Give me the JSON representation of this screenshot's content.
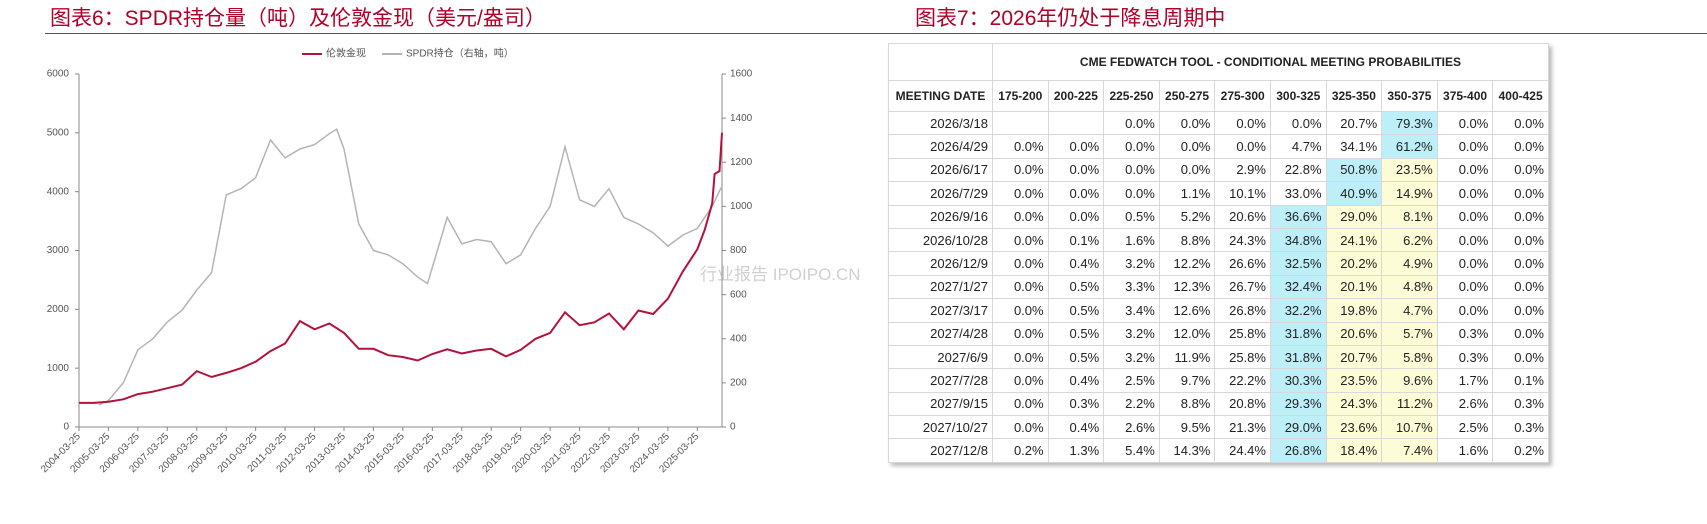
{
  "left_title": "图表6：SPDR持仓量（吨）及伦敦金现（美元/盎司）",
  "right_title": "图表7：2026年仍处于降息周期中",
  "watermark": "行业报告 IPOIPO.CN",
  "chart_data": {
    "type": "line",
    "xlim": [
      "2004-03-25",
      "2026-01-25"
    ],
    "xticks": [
      "2004-03-25",
      "2005-03-25",
      "2006-03-25",
      "2007-03-25",
      "2008-03-25",
      "2009-03-25",
      "2010-03-25",
      "2011-03-25",
      "2012-03-25",
      "2013-03-25",
      "2014-03-25",
      "2015-03-25",
      "2016-03-25",
      "2017-03-25",
      "2018-03-25",
      "2019-03-25",
      "2020-03-25",
      "2021-03-25",
      "2022-03-25",
      "2023-03-25",
      "2024-03-25",
      "2025-03-25"
    ],
    "ylim": [
      0,
      6000
    ],
    "yticks": [
      0,
      1000,
      2000,
      3000,
      4000,
      5000,
      6000
    ],
    "y2lim": [
      0,
      1600
    ],
    "y2ticks": [
      0,
      200,
      400,
      600,
      800,
      1000,
      1200,
      1400,
      1600
    ],
    "series": [
      {
        "name": "伦敦金现",
        "color": "#b3123a",
        "x": [
          "2004-03-25",
          "2004-09-25",
          "2005-03-25",
          "2005-09-25",
          "2006-03-25",
          "2006-09-25",
          "2007-03-25",
          "2007-09-25",
          "2008-03-25",
          "2008-09-25",
          "2009-03-25",
          "2009-09-25",
          "2010-03-25",
          "2010-09-25",
          "2011-03-25",
          "2011-09-25",
          "2012-03-25",
          "2012-09-25",
          "2013-03-25",
          "2013-09-25",
          "2014-03-25",
          "2014-09-25",
          "2015-03-25",
          "2015-09-25",
          "2016-03-25",
          "2016-09-25",
          "2017-03-25",
          "2017-09-25",
          "2018-03-25",
          "2018-09-25",
          "2019-03-25",
          "2019-09-25",
          "2020-03-25",
          "2020-09-25",
          "2021-03-25",
          "2021-09-25",
          "2022-03-25",
          "2022-09-25",
          "2023-03-25",
          "2023-09-25",
          "2024-03-25",
          "2024-09-25",
          "2025-03-25",
          "2025-06-25",
          "2025-09-25",
          "2025-10-25",
          "2025-12-25",
          "2026-01-25"
        ],
        "values": [
          410,
          410,
          430,
          470,
          560,
          600,
          660,
          720,
          950,
          850,
          920,
          1000,
          1110,
          1290,
          1420,
          1800,
          1660,
          1760,
          1600,
          1330,
          1330,
          1220,
          1190,
          1130,
          1240,
          1320,
          1250,
          1300,
          1330,
          1200,
          1310,
          1500,
          1600,
          1950,
          1730,
          1780,
          1930,
          1660,
          1980,
          1920,
          2180,
          2640,
          3020,
          3350,
          3800,
          4300,
          4350,
          5000
        ]
      },
      {
        "name": "SPDR持仓（右轴，吨）",
        "color": "#b4b4b4",
        "axis": "y2",
        "x": [
          "2004-11-25",
          "2005-03-25",
          "2005-09-25",
          "2006-03-25",
          "2006-09-25",
          "2007-03-25",
          "2007-09-25",
          "2008-03-25",
          "2008-09-25",
          "2009-03-25",
          "2009-09-25",
          "2010-03-25",
          "2010-09-25",
          "2011-03-25",
          "2011-09-25",
          "2012-03-25",
          "2012-09-25",
          "2012-12-25",
          "2013-03-25",
          "2013-09-25",
          "2014-03-25",
          "2014-09-25",
          "2015-03-25",
          "2015-09-25",
          "2016-01-25",
          "2016-09-25",
          "2017-03-25",
          "2017-09-25",
          "2018-03-25",
          "2018-09-25",
          "2019-03-25",
          "2019-09-25",
          "2020-03-25",
          "2020-09-25",
          "2021-03-25",
          "2021-09-25",
          "2022-03-25",
          "2022-09-25",
          "2023-03-25",
          "2023-09-25",
          "2024-03-25",
          "2024-09-25",
          "2025-03-25",
          "2025-06-25",
          "2025-09-25",
          "2025-12-25",
          "2026-01-25"
        ],
        "values": [
          100,
          120,
          200,
          350,
          400,
          476,
          530,
          621,
          700,
          1052,
          1080,
          1130,
          1301,
          1220,
          1260,
          1280,
          1330,
          1350,
          1260,
          920,
          800,
          780,
          740,
          680,
          650,
          950,
          830,
          850,
          840,
          740,
          780,
          900,
          1000,
          1270,
          1030,
          1000,
          1080,
          950,
          920,
          880,
          820,
          870,
          900,
          950,
          1000,
          1070,
          1090
        ]
      }
    ]
  },
  "table": {
    "title": "CME FEDWATCH TOOL - CONDITIONAL MEETING PROBABILITIES",
    "colors": {
      "cyan": "#bdeff8",
      "yellow": "#fdfcd6"
    },
    "columns": [
      "MEETING DATE",
      "175-200",
      "200-225",
      "225-250",
      "250-275",
      "275-300",
      "300-325",
      "325-350",
      "350-375",
      "375-400",
      "400-425"
    ],
    "rows": [
      {
        "date": "2026/3/18",
        "probs": [
          null,
          null,
          "0.0%",
          "0.0%",
          "0.0%",
          "0.0%",
          "20.7%",
          "79.3%",
          "0.0%",
          "0.0%"
        ],
        "fills": [
          null,
          null,
          null,
          null,
          null,
          null,
          null,
          "cyan",
          null,
          null
        ]
      },
      {
        "date": "2026/4/29",
        "probs": [
          "0.0%",
          "0.0%",
          "0.0%",
          "0.0%",
          "0.0%",
          "4.7%",
          "34.1%",
          "61.2%",
          "0.0%",
          "0.0%"
        ],
        "fills": [
          null,
          null,
          null,
          null,
          null,
          null,
          null,
          "cyan",
          null,
          null
        ]
      },
      {
        "date": "2026/6/17",
        "probs": [
          "0.0%",
          "0.0%",
          "0.0%",
          "0.0%",
          "2.9%",
          "22.8%",
          "50.8%",
          "23.5%",
          "0.0%",
          "0.0%"
        ],
        "fills": [
          null,
          null,
          null,
          null,
          null,
          null,
          "cyan",
          "yellow",
          null,
          null
        ]
      },
      {
        "date": "2026/7/29",
        "probs": [
          "0.0%",
          "0.0%",
          "0.0%",
          "1.1%",
          "10.1%",
          "33.0%",
          "40.9%",
          "14.9%",
          "0.0%",
          "0.0%"
        ],
        "fills": [
          null,
          null,
          null,
          null,
          null,
          null,
          "cyan",
          "yellow",
          null,
          null
        ]
      },
      {
        "date": "2026/9/16",
        "probs": [
          "0.0%",
          "0.0%",
          "0.5%",
          "5.2%",
          "20.6%",
          "36.6%",
          "29.0%",
          "8.1%",
          "0.0%",
          "0.0%"
        ],
        "fills": [
          null,
          null,
          null,
          null,
          null,
          "cyan",
          "yellow",
          "yellow",
          null,
          null
        ]
      },
      {
        "date": "2026/10/28",
        "probs": [
          "0.0%",
          "0.1%",
          "1.6%",
          "8.8%",
          "24.3%",
          "34.8%",
          "24.1%",
          "6.2%",
          "0.0%",
          "0.0%"
        ],
        "fills": [
          null,
          null,
          null,
          null,
          null,
          "cyan",
          "yellow",
          "yellow",
          null,
          null
        ]
      },
      {
        "date": "2026/12/9",
        "probs": [
          "0.0%",
          "0.4%",
          "3.2%",
          "12.2%",
          "26.6%",
          "32.5%",
          "20.2%",
          "4.9%",
          "0.0%",
          "0.0%"
        ],
        "fills": [
          null,
          null,
          null,
          null,
          null,
          "cyan",
          "yellow",
          "yellow",
          null,
          null
        ]
      },
      {
        "date": "2027/1/27",
        "probs": [
          "0.0%",
          "0.5%",
          "3.3%",
          "12.3%",
          "26.7%",
          "32.4%",
          "20.1%",
          "4.8%",
          "0.0%",
          "0.0%"
        ],
        "fills": [
          null,
          null,
          null,
          null,
          null,
          "cyan",
          "yellow",
          "yellow",
          null,
          null
        ]
      },
      {
        "date": "2027/3/17",
        "probs": [
          "0.0%",
          "0.5%",
          "3.4%",
          "12.6%",
          "26.8%",
          "32.2%",
          "19.8%",
          "4.7%",
          "0.0%",
          "0.0%"
        ],
        "fills": [
          null,
          null,
          null,
          null,
          null,
          "cyan",
          "yellow",
          "yellow",
          null,
          null
        ]
      },
      {
        "date": "2027/4/28",
        "probs": [
          "0.0%",
          "0.5%",
          "3.2%",
          "12.0%",
          "25.8%",
          "31.8%",
          "20.6%",
          "5.7%",
          "0.3%",
          "0.0%"
        ],
        "fills": [
          null,
          null,
          null,
          null,
          null,
          "cyan",
          "yellow",
          "yellow",
          null,
          null
        ]
      },
      {
        "date": "2027/6/9",
        "probs": [
          "0.0%",
          "0.5%",
          "3.2%",
          "11.9%",
          "25.8%",
          "31.8%",
          "20.7%",
          "5.8%",
          "0.3%",
          "0.0%"
        ],
        "fills": [
          null,
          null,
          null,
          null,
          null,
          "cyan",
          "yellow",
          "yellow",
          null,
          null
        ]
      },
      {
        "date": "2027/7/28",
        "probs": [
          "0.0%",
          "0.4%",
          "2.5%",
          "9.7%",
          "22.2%",
          "30.3%",
          "23.5%",
          "9.6%",
          "1.7%",
          "0.1%"
        ],
        "fills": [
          null,
          null,
          null,
          null,
          null,
          "cyan",
          "yellow",
          "yellow",
          null,
          null
        ]
      },
      {
        "date": "2027/9/15",
        "probs": [
          "0.0%",
          "0.3%",
          "2.2%",
          "8.8%",
          "20.8%",
          "29.3%",
          "24.3%",
          "11.2%",
          "2.6%",
          "0.3%"
        ],
        "fills": [
          null,
          null,
          null,
          null,
          null,
          "cyan",
          "yellow",
          "yellow",
          null,
          null
        ]
      },
      {
        "date": "2027/10/27",
        "probs": [
          "0.0%",
          "0.4%",
          "2.6%",
          "9.5%",
          "21.3%",
          "29.0%",
          "23.6%",
          "10.7%",
          "2.5%",
          "0.3%"
        ],
        "fills": [
          null,
          null,
          null,
          null,
          null,
          "cyan",
          "yellow",
          "yellow",
          null,
          null
        ]
      },
      {
        "date": "2027/12/8",
        "probs": [
          "0.2%",
          "1.3%",
          "5.4%",
          "14.3%",
          "24.4%",
          "26.8%",
          "18.4%",
          "7.4%",
          "1.6%",
          "0.2%"
        ],
        "fills": [
          null,
          null,
          null,
          null,
          null,
          "cyan",
          "yellow",
          "yellow",
          null,
          null
        ]
      }
    ]
  }
}
